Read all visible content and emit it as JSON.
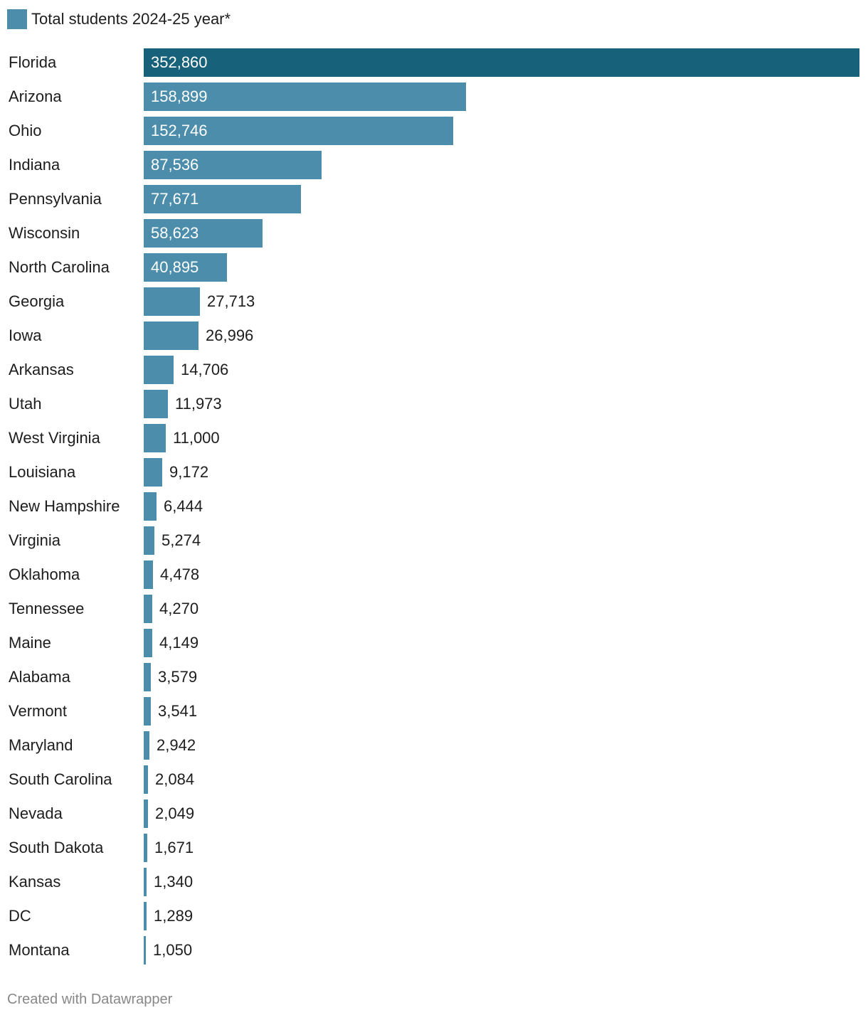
{
  "chart_data": {
    "type": "bar",
    "orientation": "horizontal",
    "legend": {
      "label": "Total students 2024-25 year*",
      "position": "top-left"
    },
    "categories": [
      "Florida",
      "Arizona",
      "Ohio",
      "Indiana",
      "Pennsylvania",
      "Wisconsin",
      "North Carolina",
      "Georgia",
      "Iowa",
      "Arkansas",
      "Utah",
      "West Virginia",
      "Louisiana",
      "New Hampshire",
      "Virginia",
      "Oklahoma",
      "Tennessee",
      "Maine",
      "Alabama",
      "Vermont",
      "Maryland",
      "South Carolina",
      "Nevada",
      "South Dakota",
      "Kansas",
      "DC",
      "Montana"
    ],
    "values": [
      352860,
      158899,
      152746,
      87536,
      77671,
      58623,
      40895,
      27713,
      26996,
      14706,
      11973,
      11000,
      9172,
      6444,
      5274,
      4478,
      4270,
      4149,
      3579,
      3541,
      2942,
      2084,
      2049,
      1671,
      1340,
      1289,
      1050
    ],
    "value_labels": [
      "352,860",
      "158,899",
      "152,746",
      "87,536",
      "77,671",
      "58,623",
      "40,895",
      "27,713",
      "26,996",
      "14,706",
      "11,973",
      "11,000",
      "9,172",
      "6,444",
      "5,274",
      "4,478",
      "4,270",
      "4,149",
      "3,579",
      "3,541",
      "2,942",
      "2,084",
      "2,049",
      "1,671",
      "1,340",
      "1,289",
      "1,050"
    ],
    "xlim": [
      0,
      352860
    ],
    "colors": {
      "bar": "#4b8dab",
      "highlight": "#17627a",
      "highlight_category": "Florida"
    },
    "grid": false
  },
  "footer": {
    "credit": "Created with Datawrapper"
  }
}
